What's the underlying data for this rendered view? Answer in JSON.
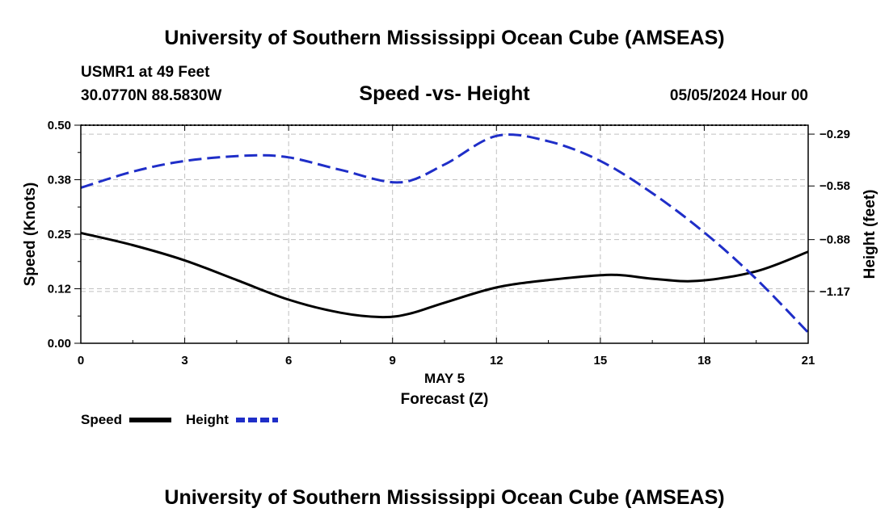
{
  "header": {
    "title_top": "University of Southern Mississippi Ocean Cube (AMSEAS)",
    "station": "USMR1 at 49 Feet",
    "coords": "30.0770N  88.5830W",
    "date": "05/05/2024 Hour 00",
    "title_bottom": "University of Southern Mississippi Ocean Cube (AMSEAS)"
  },
  "legend": {
    "speed_label": "Speed",
    "height_label": "Height"
  },
  "colors": {
    "speed": "#000000",
    "height": "#1f2ec8",
    "grid": "#c0c0c0"
  },
  "chart_data": {
    "type": "line",
    "title": "Speed -vs- Height",
    "xlabel": "Forecast (Z)",
    "xsublabel": "MAY 5",
    "ylabel_left": "Speed (Knots)",
    "ylabel_right": "Height (feet)",
    "xlim": [
      0,
      21
    ],
    "ylim_left": [
      0,
      0.5
    ],
    "ylim_right": [
      -1.46,
      -0.24
    ],
    "x_ticks": [
      0,
      3,
      6,
      9,
      12,
      15,
      18,
      21
    ],
    "x_tick_labels": [
      "0",
      "3",
      "6",
      "9",
      "12",
      "15",
      "18",
      "21"
    ],
    "y_left_ticks": [
      0,
      0.125,
      0.25,
      0.375,
      0.5
    ],
    "y_left_tick_labels": [
      "0.00",
      "0.12",
      "0.25",
      "0.38",
      "0.50"
    ],
    "y_right_ticks": [
      -0.29,
      -0.58,
      -0.88,
      -1.17
    ],
    "y_right_tick_labels": [
      "-0.29",
      "-0.58",
      "-0.88",
      "-1.17"
    ],
    "grid": true,
    "series": [
      {
        "name": "Speed",
        "axis": "left",
        "style": "solid",
        "x": [
          0,
          1.5,
          3,
          4.5,
          6,
          7.5,
          8.7,
          9.5,
          10.5,
          12,
          13.5,
          15.3,
          16.5,
          17.8,
          19.5,
          21
        ],
        "y": [
          0.253,
          0.225,
          0.19,
          0.145,
          0.1,
          0.07,
          0.06,
          0.068,
          0.093,
          0.128,
          0.145,
          0.157,
          0.148,
          0.143,
          0.165,
          0.21
        ]
      },
      {
        "name": "Height",
        "axis": "right",
        "style": "dashed",
        "x": [
          0,
          1.5,
          3,
          4.8,
          6,
          7.5,
          9.2,
          10.5,
          12,
          13.5,
          15,
          16.5,
          18,
          19.5,
          21
        ],
        "y": [
          -0.59,
          -0.5,
          -0.44,
          -0.41,
          -0.42,
          -0.49,
          -0.56,
          -0.46,
          -0.3,
          -0.33,
          -0.44,
          -0.62,
          -0.84,
          -1.1,
          -1.4
        ]
      }
    ]
  }
}
